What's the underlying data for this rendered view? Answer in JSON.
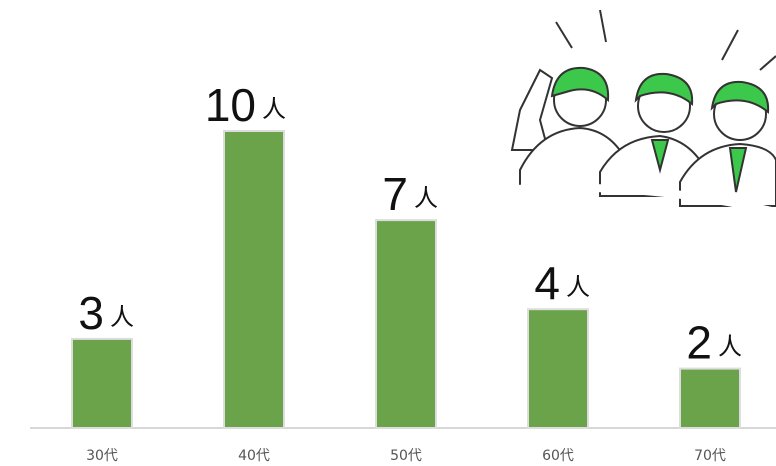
{
  "chart_data": {
    "type": "bar",
    "categories": [
      "30代",
      "40代",
      "50代",
      "60代",
      "70代"
    ],
    "values": [
      3,
      10,
      7,
      4,
      2
    ],
    "unit": "人",
    "color": "#6aa34a"
  }
}
